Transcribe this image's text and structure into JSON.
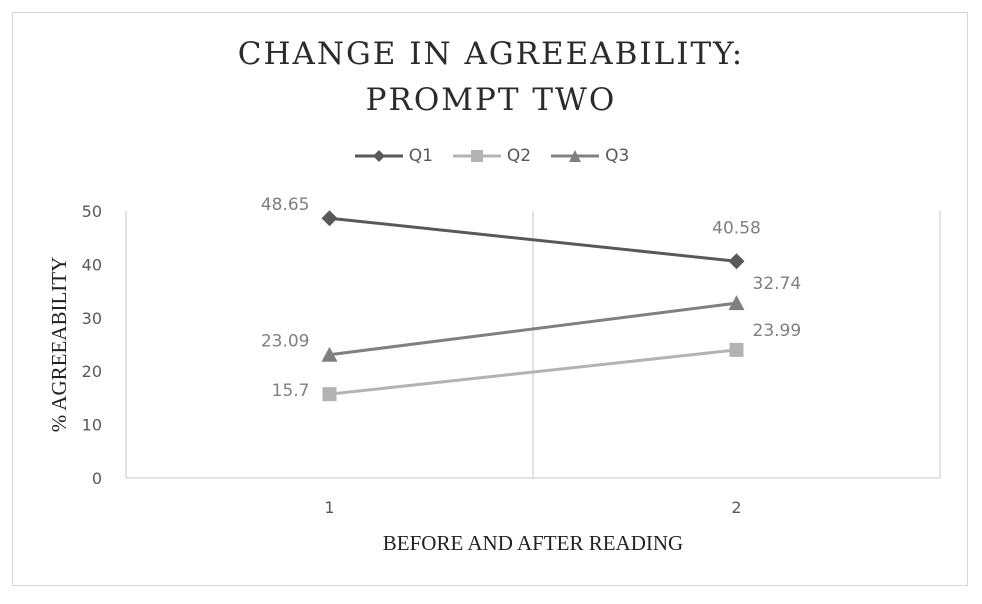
{
  "chart_data": {
    "type": "line",
    "title_line1": "CHANGE IN AGREEABILITY:",
    "title_line2": "PROMPT TWO",
    "xlabel": "BEFORE AND AFTER READING",
    "ylabel": "% AGREEABILITY",
    "categories": [
      "1",
      "2"
    ],
    "ylim": [
      0,
      50
    ],
    "yticks": [
      "0",
      "10",
      "20",
      "30",
      "40",
      "50"
    ],
    "grid": "vertical",
    "legend_position": "top",
    "series": [
      {
        "name": "Q1",
        "values": [
          48.65,
          40.58
        ],
        "labels": [
          "48.65",
          "40.58"
        ],
        "color": "#595959",
        "marker": "diamond"
      },
      {
        "name": "Q2",
        "values": [
          15.7,
          23.99
        ],
        "labels": [
          "15.7",
          "23.99"
        ],
        "color": "#b3b3b3",
        "marker": "square"
      },
      {
        "name": "Q3",
        "values": [
          23.09,
          32.74
        ],
        "labels": [
          "23.09",
          "32.74"
        ],
        "color": "#808080",
        "marker": "triangle"
      }
    ]
  }
}
